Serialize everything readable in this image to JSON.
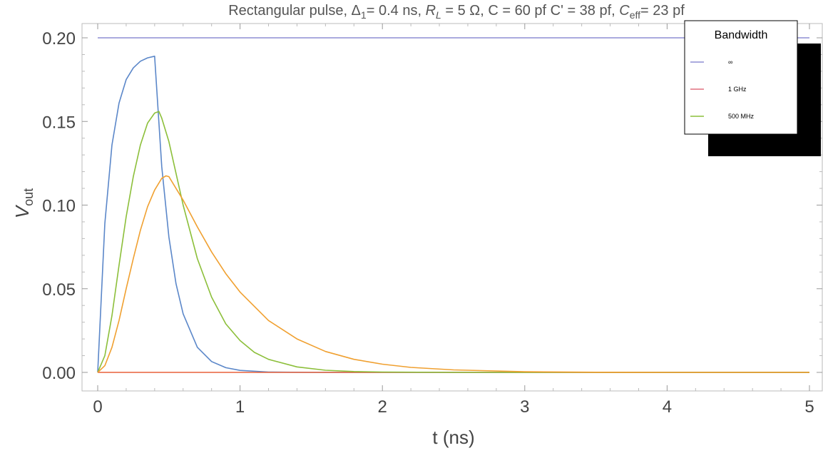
{
  "chart_data": {
    "type": "line",
    "title": {
      "prefix": "Rectangular pulse, Δ",
      "delta_sub": "1",
      "mid1": "= 0.4 ns, ",
      "rl_main": "R",
      "rl_sub": "L",
      "mid2": " = 5 Ω, C = 60 pf C' = 38 pf, ",
      "ceff_main": "C",
      "ceff_sub": "eff",
      "end": "= 23 pf"
    },
    "xlabel": "t (ns)",
    "ylabel": {
      "main": "V",
      "sub": "out"
    },
    "xlim": [
      0,
      5
    ],
    "ylim": [
      0,
      0.2
    ],
    "xticks": [
      {
        "v": 0,
        "label": "0"
      },
      {
        "v": 1,
        "label": "1"
      },
      {
        "v": 2,
        "label": "2"
      },
      {
        "v": 3,
        "label": "3"
      },
      {
        "v": 4,
        "label": "4"
      },
      {
        "v": 5,
        "label": "5"
      }
    ],
    "yticks": [
      {
        "v": 0.0,
        "label": "0.00"
      },
      {
        "v": 0.05,
        "label": "0.05"
      },
      {
        "v": 0.1,
        "label": "0.10"
      },
      {
        "v": 0.15,
        "label": "0.15"
      },
      {
        "v": 0.2,
        "label": "0.20"
      }
    ],
    "legend": {
      "title": "Bandwidth",
      "position": "top-right",
      "entries": [
        {
          "label": "∞",
          "color": "#8e8ed4"
        },
        {
          "label": "1 GHz",
          "color": "#e0707e"
        },
        {
          "label": "500 MHz",
          "color": "#8cbf3a"
        }
      ]
    },
    "series": [
      {
        "color": "#8e8ed4",
        "x": [
          0,
          5
        ],
        "y": [
          0.2,
          0.2
        ]
      },
      {
        "color": "#5b87c9",
        "x": [
          0,
          0.05,
          0.1,
          0.15,
          0.2,
          0.25,
          0.3,
          0.35,
          0.4,
          0.45,
          0.5,
          0.55,
          0.6,
          0.7,
          0.8,
          0.9,
          1.0,
          1.2,
          1.5,
          2.0,
          3.0,
          5.0
        ],
        "y": [
          0,
          0.089,
          0.136,
          0.161,
          0.175,
          0.182,
          0.186,
          0.188,
          0.189,
          0.123,
          0.081,
          0.053,
          0.035,
          0.015,
          0.0065,
          0.0028,
          0.0012,
          0.0002,
          1e-05,
          0,
          0,
          0
        ]
      },
      {
        "color": "#e8603a",
        "x": [
          0,
          5
        ],
        "y": [
          0,
          0
        ]
      },
      {
        "color": "#8cbf3a",
        "x": [
          0,
          0.05,
          0.1,
          0.15,
          0.2,
          0.25,
          0.3,
          0.35,
          0.4,
          0.43,
          0.45,
          0.5,
          0.55,
          0.6,
          0.7,
          0.8,
          0.9,
          1.0,
          1.1,
          1.2,
          1.4,
          1.6,
          1.8,
          2.0,
          2.5,
          3.0,
          5.0
        ],
        "y": [
          0,
          0.01,
          0.034,
          0.064,
          0.093,
          0.117,
          0.136,
          0.149,
          0.155,
          0.156,
          0.152,
          0.138,
          0.119,
          0.1,
          0.068,
          0.045,
          0.029,
          0.019,
          0.012,
          0.0078,
          0.0033,
          0.0013,
          0.0005,
          0.0002,
          0,
          0,
          0
        ]
      },
      {
        "color": "#f0a030",
        "x": [
          0,
          0.05,
          0.1,
          0.15,
          0.2,
          0.25,
          0.3,
          0.35,
          0.4,
          0.45,
          0.48,
          0.5,
          0.6,
          0.7,
          0.8,
          0.9,
          1.0,
          1.2,
          1.4,
          1.6,
          1.8,
          2.0,
          2.2,
          2.5,
          3.0,
          3.5,
          4.0,
          5.0
        ],
        "y": [
          0,
          0.004,
          0.015,
          0.031,
          0.05,
          0.068,
          0.085,
          0.099,
          0.109,
          0.116,
          0.1175,
          0.117,
          0.103,
          0.087,
          0.072,
          0.059,
          0.048,
          0.031,
          0.02,
          0.0125,
          0.0078,
          0.0049,
          0.003,
          0.0015,
          0.0004,
          0.0001,
          0,
          0
        ]
      }
    ]
  }
}
